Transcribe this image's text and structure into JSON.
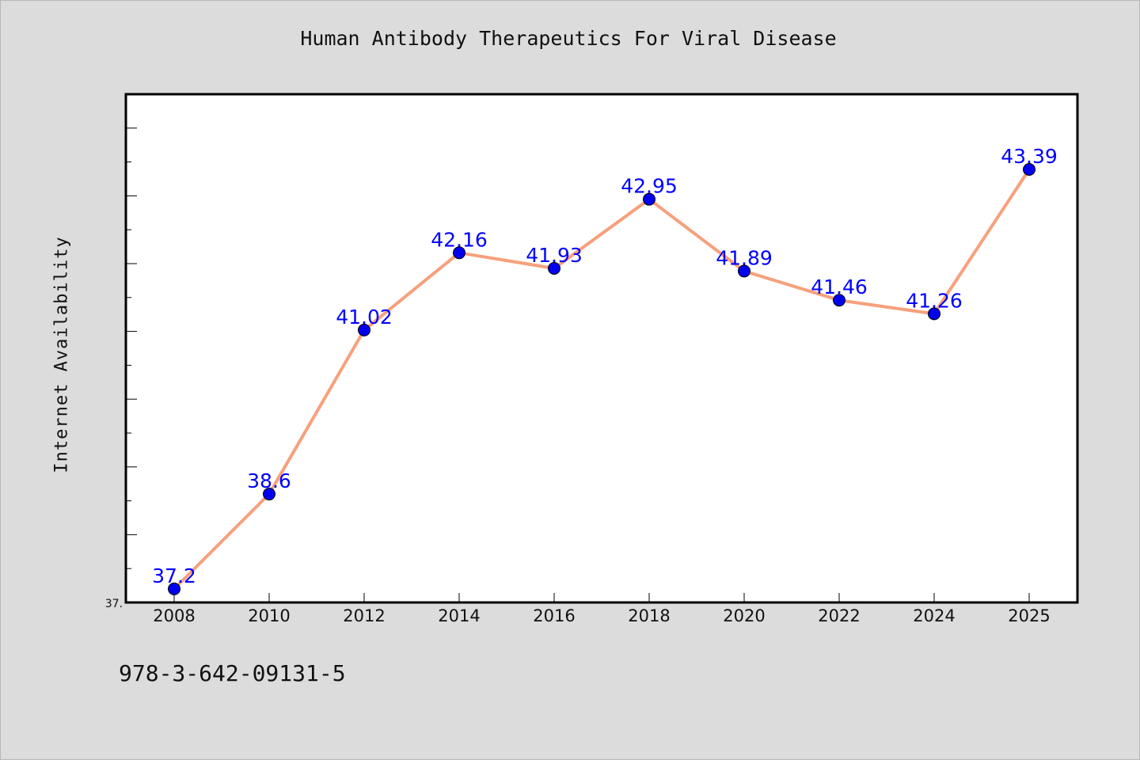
{
  "chart_data": {
    "type": "line",
    "title": "Human Antibody Therapeutics For Viral Disease",
    "xlabel": "",
    "ylabel": "Internet Availability",
    "categories": [
      "2008",
      "2010",
      "2012",
      "2014",
      "2016",
      "2018",
      "2020",
      "2022",
      "2024",
      "2025"
    ],
    "series": [
      {
        "values": [
          37.2,
          38.6,
          41.02,
          42.16,
          41.93,
          42.95,
          41.89,
          41.46,
          41.26,
          43.39
        ],
        "labels": [
          "37.2",
          "38.6",
          "41.02",
          "42.16",
          "41.93",
          "42.95",
          "41.89",
          "41.46",
          "41.26",
          "43.39"
        ]
      }
    ],
    "ylim": [
      37.0,
      44.5
    ],
    "y_tick_label": "37.",
    "grid": false,
    "legend": "none",
    "colors": {
      "line": "#f7a07c",
      "marker": "#0000ee",
      "label": "#0000ff",
      "background": "#dcdcdc",
      "plot_background": "#ffffff"
    }
  },
  "footer": {
    "code": "978-3-642-09131-5"
  }
}
